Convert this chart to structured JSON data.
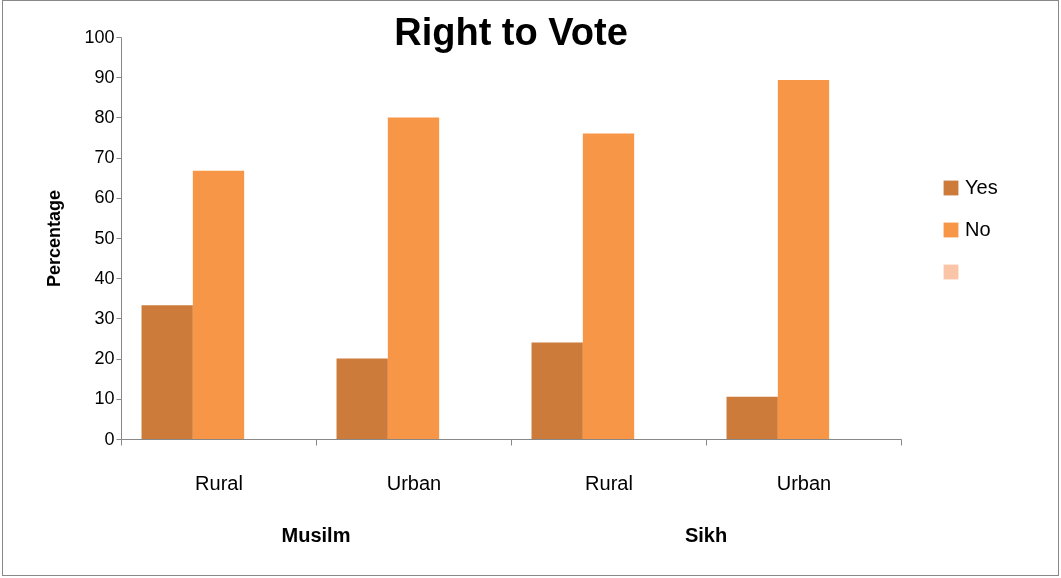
{
  "chart_data": {
    "type": "bar",
    "title": "Right to Vote",
    "ylabel": "Percentage",
    "categories": [
      "Rural",
      "Urban",
      "Rural",
      "Urban"
    ],
    "series": [
      {
        "name": "Yes",
        "color": "#cd7b3a",
        "values": [
          33.3,
          20,
          24,
          10.5
        ]
      },
      {
        "name": "No",
        "color": "#f79646",
        "values": [
          66.7,
          80,
          76,
          89.3
        ]
      },
      {
        "color": "#fac4a6",
        "values": [
          null,
          null,
          null,
          null
        ]
      }
    ],
    "ylim": [
      0,
      100
    ],
    "yticks": [
      0,
      10,
      20,
      30,
      40,
      50,
      60,
      70,
      80,
      90,
      100
    ],
    "annotations": [
      "Musilm",
      "Sikh"
    ],
    "grid": false,
    "legend": "right"
  }
}
